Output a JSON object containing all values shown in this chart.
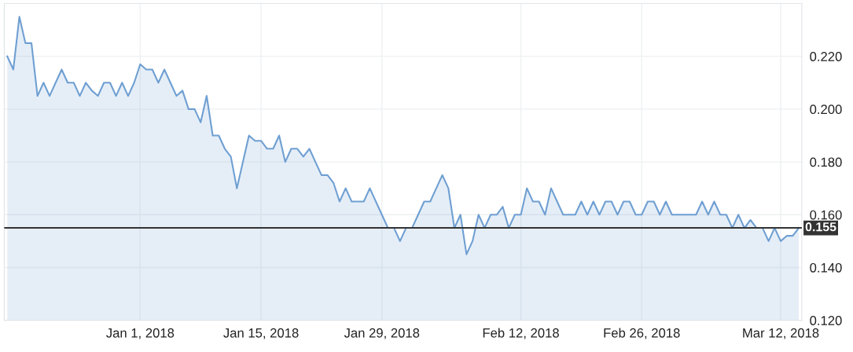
{
  "chart_data": {
    "type": "area",
    "categories": [
      null,
      null,
      null,
      null,
      null,
      null,
      null,
      null,
      null,
      null,
      null,
      null,
      null,
      null,
      null,
      null,
      null,
      null,
      null,
      null,
      null,
      null,
      "Jan 1, 2018",
      null,
      null,
      null,
      null,
      null,
      null,
      null,
      null,
      null,
      null,
      null,
      null,
      null,
      null,
      null,
      null,
      null,
      null,
      null,
      "Jan 15, 2018",
      null,
      null,
      null,
      null,
      null,
      null,
      null,
      null,
      null,
      null,
      null,
      null,
      null,
      null,
      null,
      null,
      null,
      null,
      null,
      "Jan 29, 2018",
      null,
      null,
      null,
      null,
      null,
      null,
      null,
      null,
      null,
      null,
      null,
      null,
      null,
      null,
      null,
      null,
      null,
      null,
      null,
      null,
      null,
      null,
      "Feb 12, 2018",
      null,
      null,
      null,
      null,
      null,
      null,
      null,
      null,
      null,
      null,
      null,
      null,
      null,
      null,
      null,
      null,
      null,
      null,
      null,
      "Feb 26, 2018",
      null,
      null,
      null,
      null,
      null,
      null,
      null,
      null,
      null,
      null,
      null,
      null,
      null,
      null,
      null,
      null,
      null,
      null,
      null,
      null,
      null,
      null,
      "Mar 12, 2018",
      null,
      null,
      null
    ],
    "series": [
      {
        "color": "#6f9fd2",
        "values": [
          0.22,
          0.215,
          0.235,
          0.225,
          0.225,
          0.205,
          0.21,
          0.205,
          0.21,
          0.215,
          0.21,
          0.21,
          0.205,
          0.21,
          0.207,
          0.205,
          0.21,
          0.21,
          0.205,
          0.21,
          0.205,
          0.21,
          0.217,
          0.215,
          0.215,
          0.21,
          0.215,
          0.21,
          0.205,
          0.207,
          0.2,
          0.2,
          0.195,
          0.205,
          0.19,
          0.19,
          0.185,
          0.182,
          0.17,
          0.18,
          0.19,
          0.188,
          0.188,
          0.185,
          0.185,
          0.19,
          0.18,
          0.185,
          0.185,
          0.182,
          0.185,
          0.18,
          0.175,
          0.175,
          0.172,
          0.165,
          0.17,
          0.165,
          0.165,
          0.165,
          0.17,
          0.165,
          0.16,
          0.155,
          0.155,
          0.15,
          0.155,
          0.155,
          0.16,
          0.165,
          0.165,
          0.17,
          0.175,
          0.17,
          0.155,
          0.16,
          0.145,
          0.15,
          0.16,
          0.155,
          0.16,
          0.16,
          0.163,
          0.155,
          0.16,
          0.16,
          0.17,
          0.165,
          0.165,
          0.16,
          0.17,
          0.165,
          0.16,
          0.16,
          0.16,
          0.165,
          0.16,
          0.165,
          0.16,
          0.165,
          0.165,
          0.16,
          0.165,
          0.165,
          0.16,
          0.16,
          0.165,
          0.165,
          0.16,
          0.165,
          0.16,
          0.16,
          0.16,
          0.16,
          0.16,
          0.165,
          0.16,
          0.165,
          0.16,
          0.16,
          0.155,
          0.16,
          0.155,
          0.158,
          0.155,
          0.155,
          0.15,
          0.155,
          0.15,
          0.152,
          0.152,
          0.155
        ]
      }
    ],
    "ylim": [
      0.12,
      0.24
    ],
    "yticks": [
      {
        "value": 0.12,
        "label": "0.120"
      },
      {
        "value": 0.14,
        "label": "0.140"
      },
      {
        "value": 0.16,
        "label": "0.160"
      },
      {
        "value": 0.18,
        "label": "0.180"
      },
      {
        "value": 0.2,
        "label": "0.200"
      },
      {
        "value": 0.22,
        "label": "0.220"
      }
    ],
    "ref_lines": [
      {
        "axis": "y",
        "value": 0.155,
        "label": "0.155",
        "color": "#333333"
      }
    ],
    "grid": true
  }
}
